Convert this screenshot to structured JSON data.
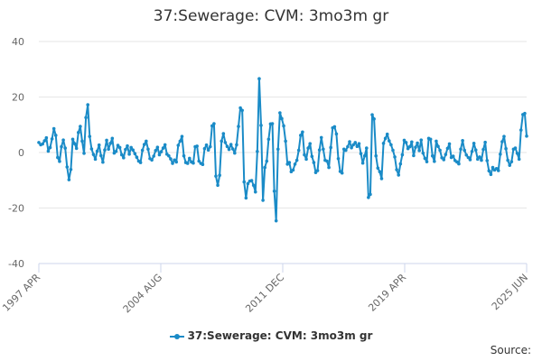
{
  "chart_data": {
    "type": "line",
    "title": "37:Sewerage: CVM: 3mo3m gr",
    "xlabel": "",
    "ylabel": "",
    "ylim": [
      -40,
      40
    ],
    "yticks": [
      40,
      20,
      0,
      -20,
      -40
    ],
    "xticks": [
      "1997 APR",
      "2004 AUG",
      "2011 DEC",
      "2019 APR",
      "2025 JUN"
    ],
    "grid": true,
    "legend": "bottom",
    "source": "Source:",
    "colors": {
      "series": "#1a8bc7",
      "grid": "#e6e6e6",
      "axis": "#ccd6eb"
    },
    "series": [
      {
        "name": "37:Sewerage: CVM: 3mo3m gr",
        "start": "1997 APR",
        "values": [
          3.6,
          2.8,
          3.1,
          4.2,
          5.3,
          0.5,
          1.8,
          4.9,
          8.6,
          6.2,
          -1.8,
          -3.2,
          2.1,
          4.5,
          1.6,
          -5.2,
          -9.8,
          -6.1,
          4.8,
          3.2,
          1.5,
          7.2,
          9.4,
          4.1,
          -0.3,
          12.6,
          17.2,
          5.8,
          1.3,
          -0.7,
          -2.4,
          0.5,
          2.7,
          -1.1,
          -3.5,
          0.9,
          4.4,
          1.2,
          3.3,
          5.1,
          -0.2,
          0.4,
          2.6,
          1.8,
          -0.8,
          -1.9,
          1.1,
          2.4,
          -0.6,
          1.8,
          0.9,
          -0.4,
          -1.7,
          -3.1,
          -3.6,
          0.8,
          2.9,
          4.1,
          1.2,
          -2.2,
          -2.7,
          -1.3,
          0.7,
          1.9,
          -0.8,
          0.3,
          1.6,
          2.8,
          -0.6,
          -1.2,
          -2.3,
          -3.9,
          -2.7,
          -3.4,
          2.6,
          4.1,
          5.8,
          -1.2,
          -3.6,
          -3.9,
          -2.1,
          -3.4,
          -3.8,
          2.1,
          2.3,
          -3.1,
          -3.9,
          -4.3,
          1.4,
          2.7,
          0.9,
          2.1,
          9.6,
          10.4,
          -8.5,
          -11.8,
          -8.2,
          4.1,
          6.8,
          3.6,
          2.2,
          1.1,
          2.9,
          1.3,
          -0.2,
          2.8,
          9.4,
          16.1,
          15.2,
          -10.6,
          -16.4,
          -11.2,
          -10.3,
          -10.1,
          -11.8,
          -14.2,
          0.4,
          26.6,
          9.8,
          -17.2,
          -5.4,
          -3.1,
          4.8,
          10.3,
          10.4,
          -13.9,
          -24.6,
          1.2,
          14.3,
          12.2,
          9.6,
          4.1,
          -4.2,
          -3.6,
          -6.9,
          -6.3,
          -4.2,
          -2.8,
          0.8,
          6.2,
          7.4,
          -0.8,
          -2.4,
          1.6,
          3.2,
          -1.4,
          -3.6,
          -7.2,
          -6.5,
          0.9,
          5.4,
          1.2,
          -2.8,
          -3.1,
          -5.4,
          1.8,
          8.9,
          9.3,
          6.7,
          -2.2,
          -6.8,
          -7.4,
          1.2,
          0.8,
          2.1,
          3.9,
          1.7,
          2.8,
          3.6,
          2.2,
          3.2,
          -0.4,
          -3.8,
          -1.2,
          1.6,
          -16.2,
          -15.1,
          13.6,
          12.1,
          -1.2,
          -5.6,
          -6.9,
          -9.4,
          3.3,
          5.1,
          6.6,
          4.2,
          2.8,
          0.8,
          -1.6,
          -6.2,
          -8.1,
          -4.1,
          -0.8,
          4.4,
          3.6,
          1.4,
          2.1,
          3.8,
          -1.1,
          1.9,
          3.4,
          0.7,
          4.5,
          -0.2,
          -2.1,
          -3.3,
          5.1,
          4.8,
          -1.2,
          -3.2,
          4.1,
          2.2,
          0.8,
          -1.9,
          -2.6,
          -0.7,
          1.5,
          3.1,
          -1.8,
          -1.3,
          -2.9,
          -3.4,
          -4.1,
          1.2,
          4.3,
          0.8,
          -0.9,
          -1.8,
          -2.6,
          0.4,
          3.3,
          0.9,
          -2.4,
          -1.6,
          -2.8,
          1.1,
          3.7,
          -2.9,
          -6.6,
          -7.9,
          -5.4,
          -6.3,
          -5.8,
          -6.5,
          -0.6,
          3.9,
          5.8,
          1.4,
          -2.8,
          -4.6,
          -3.3,
          1.2,
          1.6,
          -0.3,
          -2.4,
          8.1,
          13.7,
          14.1,
          5.9
        ]
      }
    ]
  }
}
